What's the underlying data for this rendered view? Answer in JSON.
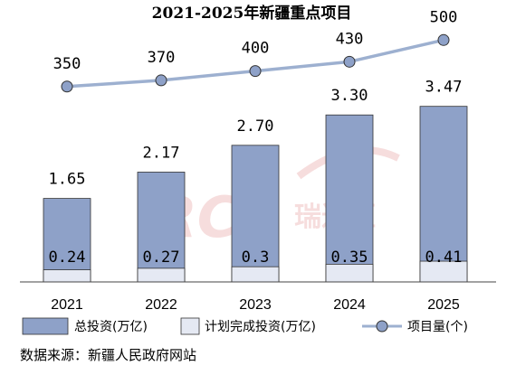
{
  "chart_data": {
    "type": "bar",
    "title": "2021-2025年新疆重点项目",
    "categories": [
      "2021",
      "2022",
      "2023",
      "2024",
      "2025"
    ],
    "series": [
      {
        "name": "总投资(万亿)",
        "kind": "bar",
        "values": [
          1.65,
          2.17,
          2.7,
          3.3,
          3.47
        ],
        "labels": [
          "1.65",
          "2.17",
          "2.70",
          "3.30",
          "3.47"
        ],
        "color": "#8EA1C8"
      },
      {
        "name": "计划完成投资(万亿)",
        "kind": "bar-overlay",
        "values": [
          0.24,
          0.27,
          0.3,
          0.35,
          0.41
        ],
        "labels": [
          "0.24",
          "0.27",
          "0.3",
          "0.35",
          "0.41"
        ],
        "color": "#E5E9F3"
      },
      {
        "name": "项目量(个)",
        "kind": "line",
        "values": [
          350,
          370,
          400,
          430,
          500
        ],
        "labels": [
          "350",
          "370",
          "400",
          "430",
          "500"
        ],
        "color": "#9DB0D0"
      }
    ],
    "legend_position": "bottom",
    "grid": false
  },
  "source": "数据来源：新疆人民政府网站",
  "watermark": "RCC瑞达恒"
}
